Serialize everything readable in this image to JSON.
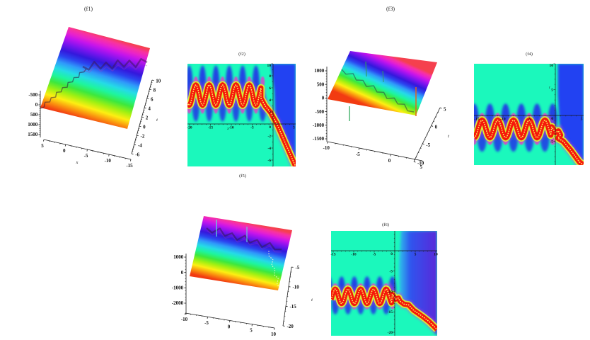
{
  "figure": {
    "background": "#ffffff"
  },
  "colors": {
    "rainbow": [
      [
        "0%",
        "#f23b12"
      ],
      [
        "7%",
        "#fa8e0f"
      ],
      [
        "15%",
        "#fdef12"
      ],
      [
        "23%",
        "#a0f012"
      ],
      [
        "31%",
        "#3de83d"
      ],
      [
        "39%",
        "#1ef59f"
      ],
      [
        "47%",
        "#25dbe6"
      ],
      [
        "55%",
        "#2f9afa"
      ],
      [
        "62%",
        "#2b46f0"
      ],
      [
        "69%",
        "#3418dc"
      ],
      [
        "77%",
        "#7a14ee"
      ],
      [
        "85%",
        "#c414ec"
      ],
      [
        "90%",
        "#e822cc"
      ],
      [
        "95%",
        "#f832a0"
      ],
      [
        "100%",
        "#f5404e"
      ]
    ],
    "density_bg": "#1bf8bc",
    "blob_blue": "#2232e8",
    "magenta": "#e53bcb",
    "wave_red": "#f5190a",
    "wave_fringe": "#d4f03a",
    "wave_dots": "#ffe95a",
    "region_blue": "#2342f2",
    "axis": "#1a1a1a"
  },
  "chart_data": [
    {
      "id": "f1",
      "type": "surface3d",
      "title": "(f1)",
      "xlabel": "x",
      "tlabel": "t",
      "x_ticks": [
        "5",
        "0",
        "-5",
        "-10",
        "-15"
      ],
      "t_ticks": [
        "10",
        "8",
        "6",
        "4",
        "2",
        "0",
        "-2",
        "-4",
        "-6"
      ],
      "z_ticks": [
        "-500",
        "0",
        "500",
        "1000",
        "1500"
      ],
      "zlim": [
        -500,
        1500
      ],
      "xlim": [
        5,
        -15
      ],
      "tlim": [
        -6,
        10
      ]
    },
    {
      "id": "f2",
      "type": "heatmap",
      "title": "(f2)",
      "xlabel": "x",
      "xlabel_pos": [
        -10.8,
        -0.95
      ],
      "origin_label": "0",
      "x_ticks": [
        -20,
        -15,
        -10,
        -5,
        0,
        5
      ],
      "y_ticks": [
        10,
        8,
        6,
        4,
        2,
        -2,
        -4,
        -6
      ],
      "xlim": [
        -20.5,
        5.4
      ],
      "ylim": [
        -7.1,
        10
      ],
      "wave": {
        "center": 4.8,
        "amplitude": 1.7,
        "period": 3.2,
        "crest_x": -18.5,
        "from": -20.5,
        "to": -2.9
      },
      "tail": [
        [
          -2.9,
          4.3
        ],
        [
          -1.9,
          3.0
        ],
        [
          -0.6,
          1.9
        ],
        [
          0.2,
          0.9
        ],
        [
          0.8,
          0.2
        ],
        [
          5.4,
          -7.1
        ]
      ],
      "blue_region": [
        [
          -0.6,
          10
        ],
        [
          5.4,
          10
        ],
        [
          5.4,
          -7.1
        ],
        [
          1.0,
          0.2
        ],
        [
          0.5,
          1.6
        ],
        [
          0.3,
          5.5
        ],
        [
          -0.6,
          10
        ]
      ]
    },
    {
      "id": "f3",
      "type": "surface3d",
      "title": "(f3)",
      "tlabel": "t",
      "x_ticks": [
        "-10",
        "-5",
        "0",
        "5"
      ],
      "t_ticks": [
        "5",
        "0",
        "-5",
        "-10"
      ],
      "z_ticks": [
        "1000",
        "500",
        "0",
        "-500",
        "-1000",
        "-1500"
      ],
      "zlim": [
        -1500,
        1000
      ],
      "xlim": [
        -10,
        5
      ],
      "tlim": [
        -10,
        5
      ]
    },
    {
      "id": "f4",
      "type": "heatmap",
      "title": "(f4)",
      "ylabel": "t",
      "ylabel_pos": [
        -1.1,
        5.2
      ],
      "origin_label": "0",
      "x_ticks": [
        -15,
        -10,
        -5,
        0,
        5
      ],
      "y_ticks": [
        10,
        5,
        -5,
        -10
      ],
      "xlim": [
        -15.5,
        5.4
      ],
      "ylim": [
        -9.6,
        10
      ],
      "wave": {
        "center": -2.6,
        "amplitude": 1.7,
        "period": 3.0,
        "crest_x": -14,
        "from": -15.5,
        "to": -0.7
      },
      "tail": [
        [
          -0.7,
          -2.2
        ],
        [
          0.0,
          -3.3
        ],
        [
          0.6,
          -3.0
        ],
        [
          1.0,
          -3.8
        ],
        [
          0.5,
          -4.4
        ],
        [
          1.5,
          -5.0
        ],
        [
          3.0,
          -6.8
        ],
        [
          4.6,
          -9.0
        ],
        [
          5.4,
          -9.6
        ]
      ],
      "blue_region": [
        [
          0.5,
          10
        ],
        [
          5.4,
          10
        ],
        [
          5.4,
          -9.6
        ],
        [
          2.0,
          -4.8
        ],
        [
          1.2,
          -3.6
        ],
        [
          0.8,
          -1.5
        ],
        [
          0.5,
          4.0
        ]
      ]
    },
    {
      "id": "f5",
      "type": "surface3d",
      "title": "(f5)",
      "tlabel": "t",
      "x_ticks": [
        "-10",
        "-5",
        "0",
        "5",
        "10"
      ],
      "t_ticks": [
        "-5",
        "-10",
        "-15",
        "-20"
      ],
      "z_ticks": [
        "1000",
        "0",
        "-1000",
        "-2000"
      ],
      "zlim": [
        -2000,
        1000
      ],
      "xlim": [
        -10,
        10
      ],
      "tlim": [
        -20,
        -5
      ]
    },
    {
      "id": "f6",
      "type": "heatmap",
      "title": "(f6)",
      "origin_label": "0",
      "x_ticks": [
        -15,
        -10,
        -5,
        0,
        5,
        10
      ],
      "y_ticks": [
        5,
        -5,
        -10,
        -15,
        -20
      ],
      "xlim": [
        -15.5,
        10.3
      ],
      "ylim": [
        -20.9,
        4.9
      ],
      "wave": {
        "center": -11.2,
        "amplitude": 1.8,
        "period": 3.1,
        "crest_x": -14.5,
        "from": -15.5,
        "to": -0.6
      },
      "tail": [
        [
          -0.6,
          -10.7
        ],
        [
          0.2,
          -11.9
        ],
        [
          0.9,
          -11.6
        ],
        [
          1.3,
          -12.4
        ],
        [
          2.2,
          -13.1
        ],
        [
          3.4,
          -13.3
        ],
        [
          4.6,
          -14.6
        ],
        [
          5.6,
          -15.3
        ],
        [
          7.0,
          -16.3
        ],
        [
          8.4,
          -17.4
        ],
        [
          10.3,
          -19.3
        ]
      ],
      "blue_region": [
        [
          1.5,
          4.9
        ],
        [
          10.3,
          4.9
        ],
        [
          10.3,
          -20.9
        ],
        [
          8.0,
          -17.6
        ],
        [
          5.2,
          -14.8
        ],
        [
          2.0,
          -12.6
        ],
        [
          1.2,
          -11.0
        ],
        [
          1.0,
          -4.0
        ]
      ],
      "region_gradient": [
        [
          "0%",
          "#2fc4ea"
        ],
        [
          "30%",
          "#2f55ee"
        ],
        [
          "100%",
          "#5a28da"
        ]
      ]
    }
  ]
}
